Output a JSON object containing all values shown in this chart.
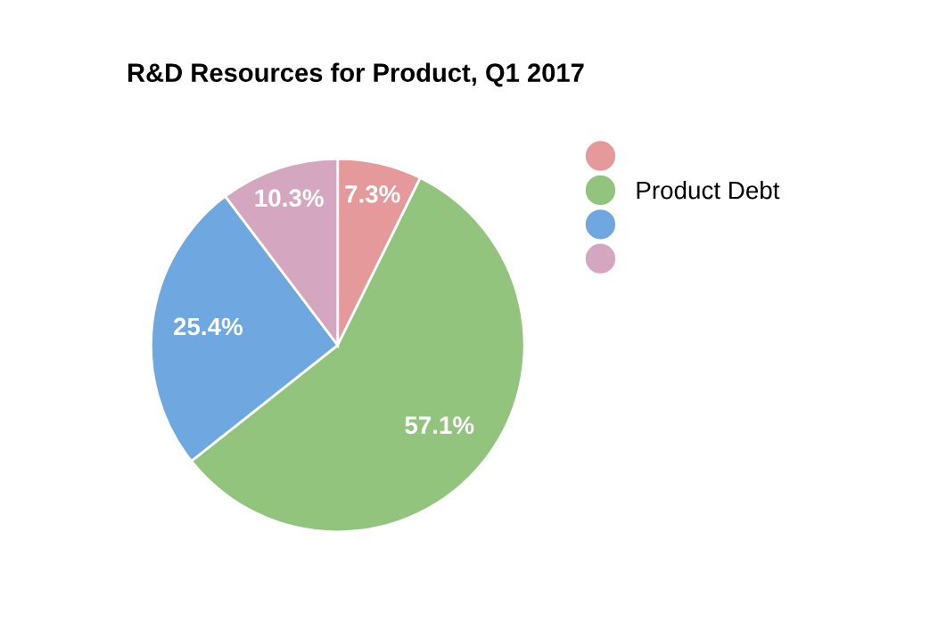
{
  "chart_data": {
    "type": "pie",
    "title": "R&D Resources for Product, Q1 2017",
    "categories": [
      null,
      "Product Debt",
      null,
      null
    ],
    "values": [
      7.3,
      57.1,
      25.4,
      10.3
    ],
    "colors": [
      "#e6999a",
      "#93c47d",
      "#6fa8e0",
      "#d4a6c0"
    ],
    "value_labels": [
      "7.3%",
      "57.1%",
      "25.4%",
      "10.3%"
    ],
    "legend": "top right"
  }
}
